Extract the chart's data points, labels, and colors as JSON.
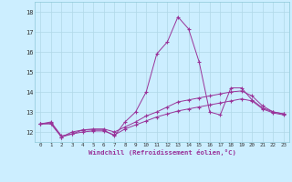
{
  "xlabel": "Windchill (Refroidissement éolien,°C)",
  "background_color": "#cceeff",
  "line_color": "#993399",
  "ylim": [
    11.5,
    18.5
  ],
  "xlim": [
    -0.5,
    23.5
  ],
  "yticks": [
    12,
    13,
    14,
    15,
    16,
    17,
    18
  ],
  "xticks": [
    0,
    1,
    2,
    3,
    4,
    5,
    6,
    7,
    8,
    9,
    10,
    11,
    12,
    13,
    14,
    15,
    16,
    17,
    18,
    19,
    20,
    21,
    22,
    23
  ],
  "series": [
    [
      12.4,
      12.5,
      11.8,
      11.9,
      12.1,
      12.1,
      12.1,
      11.8,
      12.5,
      13.0,
      14.0,
      15.9,
      16.5,
      17.75,
      17.15,
      15.5,
      13.0,
      12.85,
      14.2,
      14.2,
      13.6,
      13.2,
      13.0,
      12.9
    ],
    [
      12.4,
      12.45,
      11.75,
      12.0,
      12.1,
      12.15,
      12.15,
      12.0,
      12.25,
      12.5,
      12.8,
      13.0,
      13.25,
      13.5,
      13.6,
      13.7,
      13.8,
      13.9,
      14.0,
      14.05,
      13.8,
      13.3,
      13.0,
      12.9
    ],
    [
      12.4,
      12.4,
      11.75,
      11.9,
      12.0,
      12.05,
      12.05,
      11.85,
      12.15,
      12.35,
      12.55,
      12.75,
      12.9,
      13.05,
      13.15,
      13.25,
      13.35,
      13.45,
      13.55,
      13.65,
      13.55,
      13.15,
      12.95,
      12.85
    ]
  ]
}
